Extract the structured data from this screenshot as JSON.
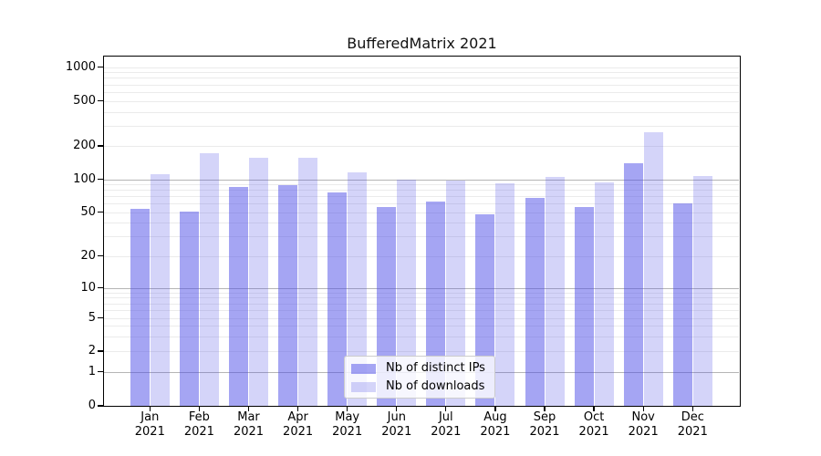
{
  "chart_data": {
    "type": "bar",
    "title": "BufferedMatrix 2021",
    "months": [
      "Jan",
      "Feb",
      "Mar",
      "Apr",
      "May",
      "Jun",
      "Jul",
      "Aug",
      "Sep",
      "Oct",
      "Nov",
      "Dec"
    ],
    "year_label": "2021",
    "series": [
      {
        "name": "Nb of distinct IPs",
        "color": "rgba(75,75,231,0.50)",
        "values": [
          54,
          51,
          85,
          88,
          75,
          56,
          63,
          48,
          67,
          56,
          139,
          60
        ]
      },
      {
        "name": "Nb of downloads",
        "color": "rgba(75,75,231,0.24)",
        "values": [
          111,
          172,
          156,
          156,
          116,
          100,
          97,
          91,
          104,
          94,
          266,
          107
        ]
      }
    ],
    "ytick_labels": [
      "0",
      "1",
      "2",
      "5",
      "10",
      "20",
      "50",
      "100",
      "200",
      "500",
      "1000"
    ],
    "ytick_values": [
      0,
      1,
      2,
      5,
      10,
      20,
      50,
      100,
      200,
      500,
      1000
    ],
    "ylim": [
      0,
      1400
    ],
    "yscale": "log-like",
    "grid": "horizontal",
    "legend_position": "inside-bottom-center"
  },
  "colors": {
    "grid_minor": "#ebebeb",
    "grid_major": "#b5b5b5",
    "frame": "#000000",
    "legend_border": "#cccccc"
  }
}
